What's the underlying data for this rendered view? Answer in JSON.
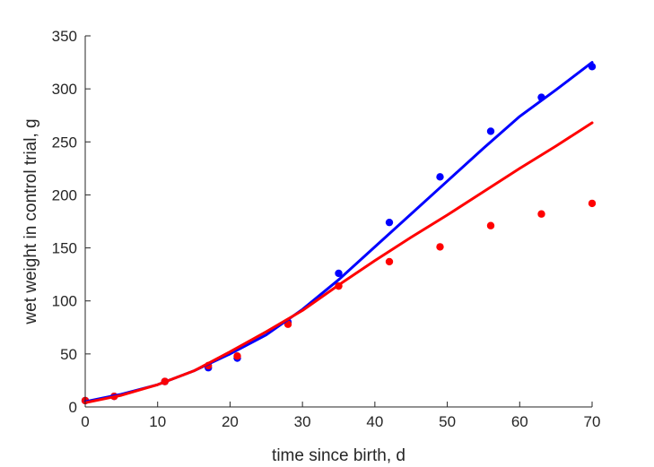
{
  "chart_data": {
    "type": "scatter",
    "title": "",
    "xlabel": "time since birth, d",
    "ylabel": "wet weight in control trial, g",
    "xlim": [
      0,
      70
    ],
    "ylim": [
      0,
      350
    ],
    "xticks": [
      0,
      10,
      20,
      30,
      40,
      50,
      60,
      70
    ],
    "yticks": [
      0,
      50,
      100,
      150,
      200,
      250,
      300,
      350
    ],
    "grid": false,
    "legend": "none",
    "series": [
      {
        "color": "#0000ff",
        "kind": "points",
        "x": [
          0,
          4,
          11,
          17,
          21,
          28,
          35,
          42,
          49,
          56,
          63,
          70
        ],
        "y": [
          6,
          10,
          24,
          37,
          46,
          80,
          126,
          174,
          217,
          260,
          292,
          321
        ]
      },
      {
        "color": "#ff0000",
        "kind": "points",
        "x": [
          0,
          4,
          11,
          17,
          21,
          28,
          35,
          42,
          49,
          56,
          63,
          70
        ],
        "y": [
          6,
          10,
          24,
          39,
          48,
          78,
          114,
          137,
          151,
          171,
          182,
          192
        ]
      },
      {
        "color": "#0000ff",
        "kind": "fit-line",
        "x": [
          0,
          5,
          10,
          15,
          20,
          25,
          30,
          35,
          40,
          45,
          50,
          55,
          60,
          65,
          70
        ],
        "y": [
          5,
          12,
          21,
          34,
          50,
          68,
          92,
          120,
          151,
          182,
          213,
          244,
          274,
          299,
          325
        ]
      },
      {
        "color": "#ff0000",
        "kind": "fit-line",
        "x": [
          0,
          5,
          10,
          15,
          20,
          25,
          30,
          35,
          40,
          45,
          50,
          55,
          60,
          65,
          70
        ],
        "y": [
          4,
          11,
          21,
          34,
          52,
          71,
          91,
          115,
          138,
          160,
          181,
          203,
          225,
          246,
          268
        ]
      }
    ]
  }
}
